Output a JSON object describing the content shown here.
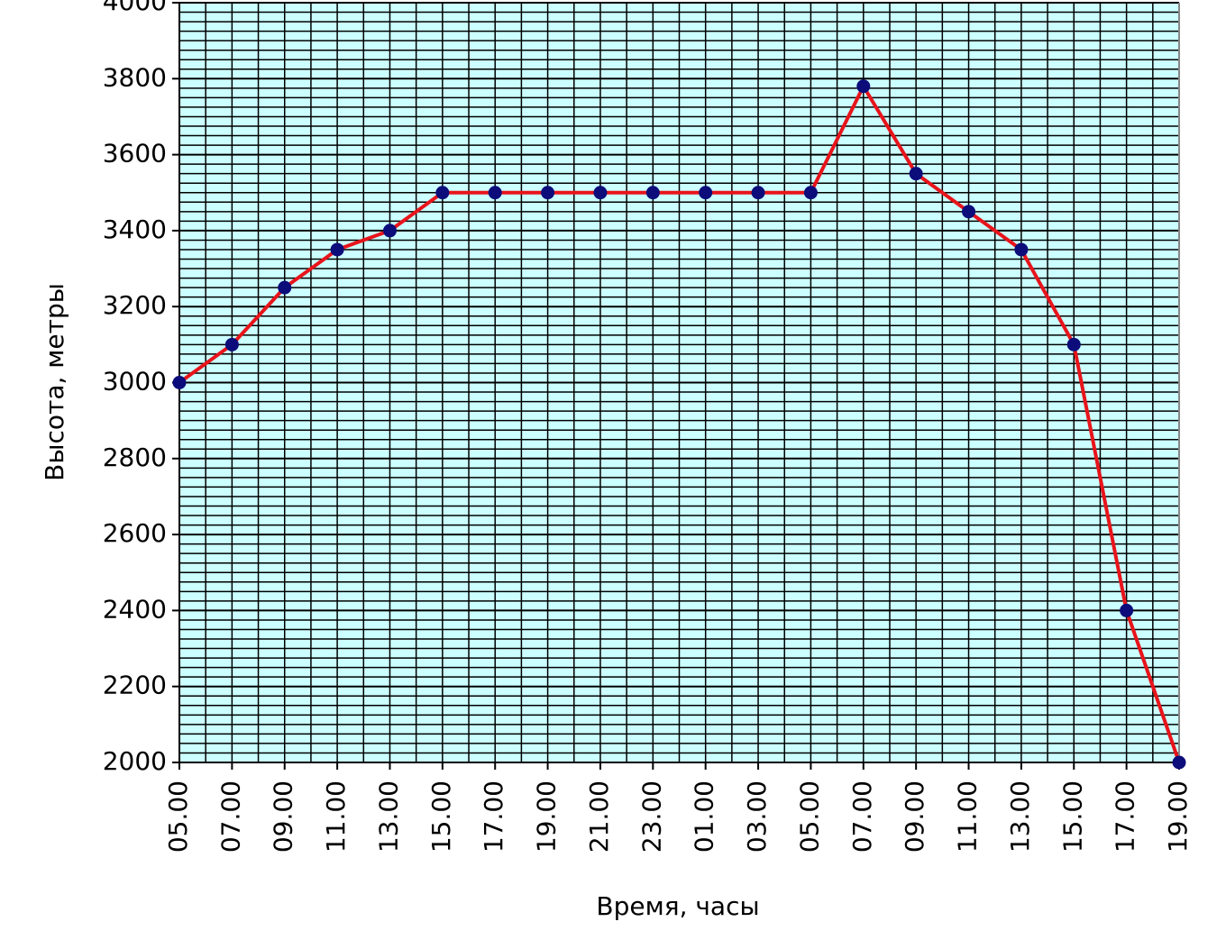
{
  "chart_data": {
    "type": "line",
    "x_label": "Время, часы",
    "y_label": "Высота, метры",
    "categories": [
      "05.00",
      "07.00",
      "09.00",
      "11.00",
      "13.00",
      "15.00",
      "17.00",
      "19.00",
      "21.00",
      "23.00",
      "01.00",
      "03.00",
      "05.00",
      "07.00",
      "09.00",
      "11.00",
      "13.00",
      "15.00",
      "17.00",
      "19.00"
    ],
    "values": [
      3000,
      3100,
      3250,
      3350,
      3400,
      3500,
      3500,
      3500,
      3500,
      3500,
      3500,
      3500,
      3500,
      3780,
      3550,
      3450,
      3350,
      3100,
      2400,
      2000
    ],
    "line_color": "#e8141b",
    "marker_color": "#0c0c7a",
    "background": "#ccffff",
    "ylim": [
      2000,
      4000
    ],
    "yticks": [
      2000,
      2200,
      2400,
      2600,
      2800,
      3000,
      3200,
      3400,
      3600,
      3800,
      4000
    ],
    "grid": true
  }
}
